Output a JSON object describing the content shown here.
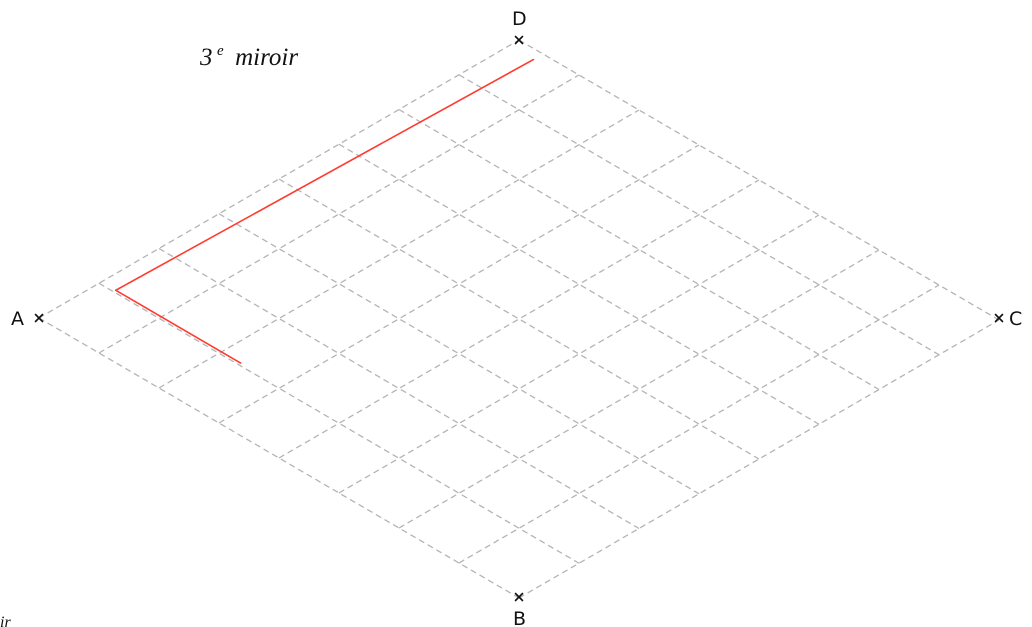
{
  "title": {
    "number": "3",
    "superscript": "e",
    "word": "miroir"
  },
  "vertices": {
    "A": "A",
    "B": "B",
    "C": "C",
    "D": "D"
  },
  "grid": {
    "divisions": 8,
    "line_color": "#b4b4b4"
  },
  "path": {
    "color": "#ff3b30",
    "points_uv": [
      [
        0.98,
        0.05
      ],
      [
        0.13,
        0.03
      ],
      [
        0.13,
        0.29
      ]
    ]
  },
  "corner_text": "ir"
}
